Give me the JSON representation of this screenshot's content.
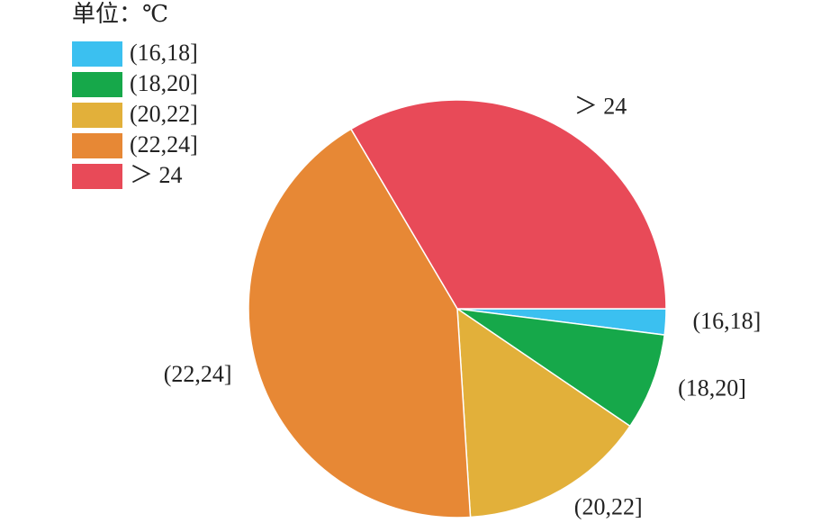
{
  "chart_data": {
    "type": "pie",
    "title": "单位：℃",
    "categories": [
      "(16,18]",
      "(18,20]",
      "(20,22]",
      "(22,24]",
      "＞ 24"
    ],
    "values": [
      2,
      7.5,
      14.5,
      42.5,
      33.5
    ],
    "colors": [
      "#3bc0f0",
      "#16a84a",
      "#e2b03a",
      "#e78835",
      "#e84a58"
    ],
    "legend": "upper left"
  }
}
